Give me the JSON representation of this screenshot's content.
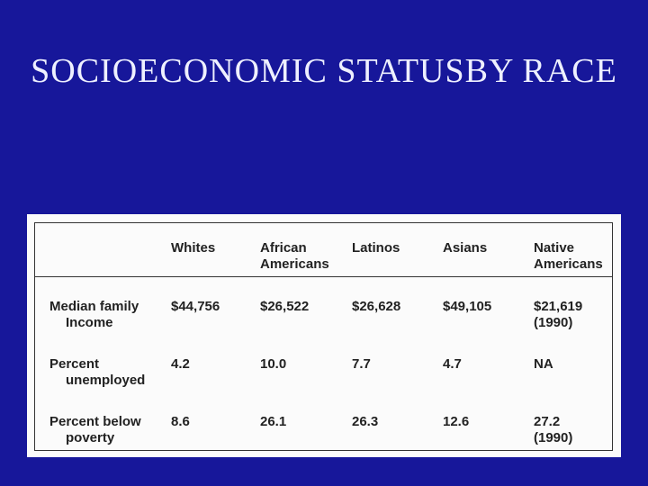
{
  "slide": {
    "title": [
      "SOCIOECONOMIC STATUS",
      "BY RACE"
    ]
  },
  "table": {
    "header": [
      [
        "Whites"
      ],
      [
        "African",
        "Americans"
      ],
      [
        "Latinos"
      ],
      [
        "Asians"
      ],
      [
        "Native",
        "Americans"
      ]
    ],
    "rows": [
      {
        "label": [
          "Median family",
          "Income"
        ],
        "cells": [
          [
            "$44,756"
          ],
          [
            "$26,522"
          ],
          [
            "$26,628"
          ],
          [
            "$49,105"
          ],
          [
            "$21,619",
            "(1990)"
          ]
        ]
      },
      {
        "label": [
          "Percent",
          "unemployed"
        ],
        "cells": [
          [
            "4.2"
          ],
          [
            "10.0"
          ],
          [
            "7.7"
          ],
          [
            "4.7"
          ],
          [
            "NA"
          ]
        ]
      },
      {
        "label": [
          "Percent below",
          "poverty"
        ],
        "cells": [
          [
            "8.6"
          ],
          [
            "26.1"
          ],
          [
            "26.3"
          ],
          [
            "12.6"
          ],
          [
            "27.2",
            "(1990)"
          ]
        ]
      }
    ]
  }
}
